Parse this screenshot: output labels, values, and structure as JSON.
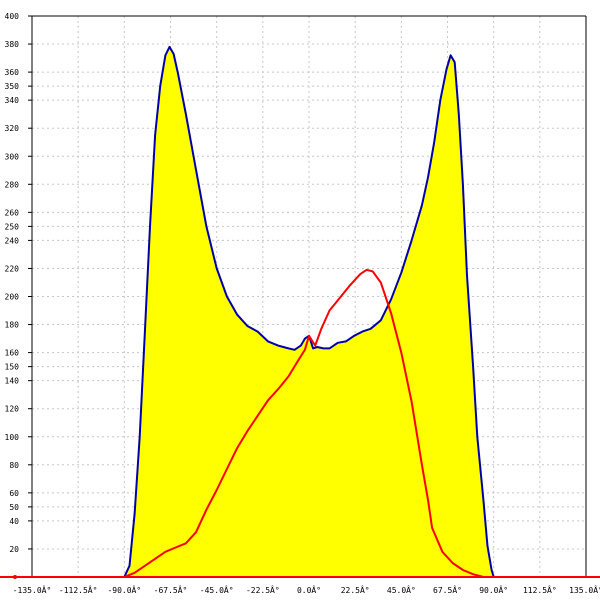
{
  "chart_data": {
    "type": "area",
    "title": "",
    "xlabel": "",
    "ylabel": "",
    "xlim": [
      -135,
      135
    ],
    "ylim": [
      0,
      400
    ],
    "grid": true,
    "x_ticks": [
      {
        "value": -135,
        "label": "-135.0Â°"
      },
      {
        "value": -112.5,
        "label": "-112.5Â°"
      },
      {
        "value": -90,
        "label": "-90.0Â°"
      },
      {
        "value": -67.5,
        "label": "-67.5Â°"
      },
      {
        "value": -45,
        "label": "-45.0Â°"
      },
      {
        "value": -22.5,
        "label": "-22.5Â°"
      },
      {
        "value": 0,
        "label": "0.0Â°"
      },
      {
        "value": 22.5,
        "label": "22.5Â°"
      },
      {
        "value": 45,
        "label": "45.0Â°"
      },
      {
        "value": 67.5,
        "label": "67.5Â°"
      },
      {
        "value": 90,
        "label": "90.0Â°"
      },
      {
        "value": 112.5,
        "label": "112.5Â°"
      },
      {
        "value": 135,
        "label": "135.0Â°"
      }
    ],
    "y_ticks": [
      20,
      40,
      50,
      60,
      80,
      100,
      120,
      140,
      150,
      160,
      180,
      200,
      220,
      240,
      250,
      260,
      280,
      300,
      320,
      340,
      350,
      360,
      380,
      400
    ],
    "series": [
      {
        "color": "#0000aa",
        "fill": "#ffff00",
        "points": [
          [
            -90,
            0
          ],
          [
            -87.5,
            8
          ],
          [
            -85,
            45
          ],
          [
            -82.5,
            100
          ],
          [
            -80,
            175
          ],
          [
            -77.5,
            250
          ],
          [
            -75,
            315
          ],
          [
            -72.5,
            350
          ],
          [
            -70,
            372
          ],
          [
            -68,
            378
          ],
          [
            -66,
            373
          ],
          [
            -64,
            360
          ],
          [
            -60,
            330
          ],
          [
            -55,
            290
          ],
          [
            -50,
            250
          ],
          [
            -45,
            220
          ],
          [
            -40,
            200
          ],
          [
            -35,
            187
          ],
          [
            -30,
            179
          ],
          [
            -25,
            175
          ],
          [
            -20,
            168
          ],
          [
            -15,
            165
          ],
          [
            -10,
            163
          ],
          [
            -7,
            162
          ],
          [
            -4,
            165
          ],
          [
            -2,
            170
          ],
          [
            0,
            172
          ],
          [
            2,
            163
          ],
          [
            4,
            164
          ],
          [
            7,
            163
          ],
          [
            10,
            163
          ],
          [
            14,
            167
          ],
          [
            18,
            168
          ],
          [
            22,
            172
          ],
          [
            26,
            175
          ],
          [
            30,
            177
          ],
          [
            35,
            183
          ],
          [
            40,
            198
          ],
          [
            45,
            217
          ],
          [
            50,
            240
          ],
          [
            55,
            265
          ],
          [
            58,
            285
          ],
          [
            61,
            310
          ],
          [
            64,
            340
          ],
          [
            67,
            362
          ],
          [
            69,
            372
          ],
          [
            71,
            367
          ],
          [
            73,
            330
          ],
          [
            75,
            280
          ],
          [
            77,
            215
          ],
          [
            80,
            150
          ],
          [
            82,
            100
          ],
          [
            85,
            55
          ],
          [
            87,
            22
          ],
          [
            89,
            5
          ],
          [
            90,
            0
          ]
        ]
      },
      {
        "color": "#ff0000",
        "fill": null,
        "points": [
          [
            -135,
            0
          ],
          [
            -90,
            0
          ],
          [
            -85,
            3
          ],
          [
            -80,
            8
          ],
          [
            -75,
            13
          ],
          [
            -70,
            18
          ],
          [
            -65,
            21
          ],
          [
            -60,
            24
          ],
          [
            -55,
            32
          ],
          [
            -50,
            48
          ],
          [
            -45,
            62
          ],
          [
            -40,
            77
          ],
          [
            -35,
            92
          ],
          [
            -30,
            104
          ],
          [
            -25,
            115
          ],
          [
            -20,
            126
          ],
          [
            -15,
            134
          ],
          [
            -10,
            143
          ],
          [
            -5,
            155
          ],
          [
            -2,
            162
          ],
          [
            0,
            172
          ],
          [
            3,
            165
          ],
          [
            6,
            177
          ],
          [
            10,
            190
          ],
          [
            15,
            199
          ],
          [
            20,
            208
          ],
          [
            25,
            216
          ],
          [
            28,
            219
          ],
          [
            31,
            218
          ],
          [
            35,
            210
          ],
          [
            40,
            188
          ],
          [
            45,
            160
          ],
          [
            50,
            125
          ],
          [
            55,
            80
          ],
          [
            58,
            55
          ],
          [
            60,
            35
          ],
          [
            65,
            18
          ],
          [
            70,
            10
          ],
          [
            75,
            5
          ],
          [
            80,
            2
          ],
          [
            85,
            0
          ],
          [
            135,
            0
          ]
        ]
      }
    ]
  }
}
